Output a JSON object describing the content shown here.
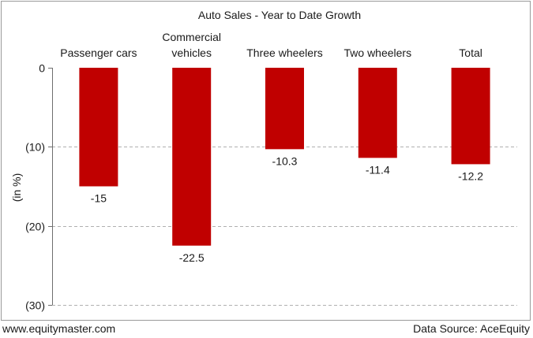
{
  "chart_data": {
    "type": "bar",
    "title": "Auto Sales - Year to Date Growth",
    "ylabel": "(in %)",
    "categories": [
      [
        "Passenger cars"
      ],
      [
        "Commercial",
        "vehicles"
      ],
      [
        "Three wheelers"
      ],
      [
        "Two wheelers"
      ],
      [
        "Total"
      ]
    ],
    "values": [
      -15,
      -22.5,
      -10.3,
      -11.4,
      -12.2
    ],
    "value_labels": [
      "-15",
      "-22.5",
      "-10.3",
      "-11.4",
      "-12.2"
    ],
    "ylim": [
      -30,
      0
    ],
    "yticks": [
      0,
      -10,
      -20,
      -30
    ],
    "ytick_labels": [
      "0",
      "(10)",
      "(20)",
      "(30)"
    ],
    "grid": true,
    "bar_color": "#c00000",
    "grid_color": "#b0b0b0"
  },
  "footer": {
    "source_url": "www.equitymaster.com",
    "data_source": "Data Source: AceEquity"
  }
}
